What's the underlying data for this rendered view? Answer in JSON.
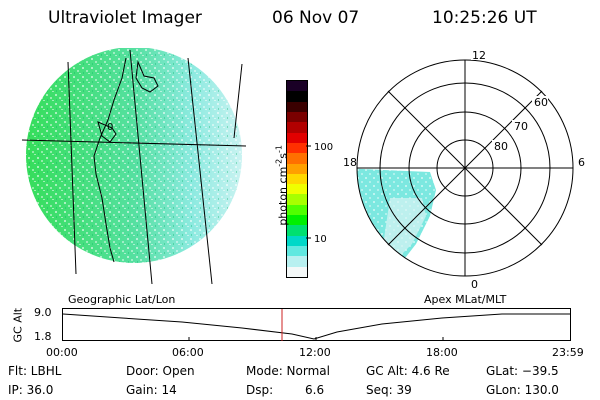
{
  "header": {
    "title": "Ultraviolet Imager",
    "date": "06 Nov 07",
    "time": "10:25:26 UT"
  },
  "colorbar": {
    "unit": "photon cm",
    "unit_exp1": "-2",
    "unit_mid": "s",
    "unit_exp2": "-1",
    "ticks": [
      "100",
      "10"
    ],
    "colors": [
      "#1a0026",
      "#000000",
      "#3a0000",
      "#7a0000",
      "#b20000",
      "#e20000",
      "#ff3000",
      "#ff7000",
      "#ffa000",
      "#ffd800",
      "#f0ff00",
      "#a8ff00",
      "#50ff00",
      "#00f000",
      "#00e070",
      "#00d8c8",
      "#60e8e0",
      "#b8f0f0",
      "#f4f8f8"
    ]
  },
  "geo_panel": {
    "label": "Geographic Lat/Lon",
    "land_color": "#33dd55",
    "ocean_color": "#7ce8e0",
    "lat_marker": "0"
  },
  "polar_panel": {
    "label": "Apex MLat/MLT",
    "mlt_labels": {
      "top": "12",
      "bottom": "0",
      "left": "18",
      "right": "6"
    },
    "mlat_labels": [
      "60",
      "70",
      "80"
    ]
  },
  "altitude_plot": {
    "ylabel": "GC Alt",
    "ytick_top": "9.0",
    "ytick_bottom": "1.8",
    "xticks": [
      "00:00",
      "06:00",
      "12:00",
      "18:00",
      "23:59"
    ],
    "marker_color": "#cc2222"
  },
  "info": {
    "filter": "Flt: LBHL",
    "ip": "IP: 36.0",
    "door": "Door: Open",
    "gain": "Gain: 14",
    "mode": "Mode: Normal",
    "dsp_label": "Dsp:",
    "dsp_value": "6.6",
    "gc_alt": "GC Alt: 4.6 Re",
    "seq": "Seq: 39",
    "glat": "GLat: −39.5",
    "glon": "GLon: 130.0"
  }
}
